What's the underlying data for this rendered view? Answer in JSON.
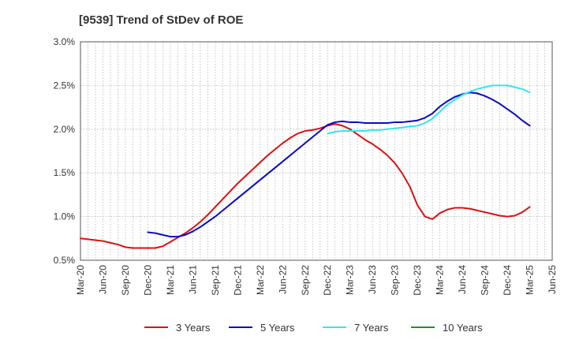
{
  "chart_data": {
    "type": "line",
    "title": "[9539]  Trend of StDev of ROE",
    "xlabel": "",
    "ylabel": "",
    "ylim": [
      0.5,
      3.0
    ],
    "y_ticks": [
      "0.5%",
      "1.0%",
      "1.5%",
      "2.0%",
      "2.5%",
      "3.0%"
    ],
    "y_tick_values": [
      0.5,
      1.0,
      1.5,
      2.0,
      2.5,
      3.0
    ],
    "x_ticks": [
      "Mar-20",
      "Jun-20",
      "Sep-20",
      "Dec-20",
      "Mar-21",
      "Jun-21",
      "Sep-21",
      "Dec-21",
      "Mar-22",
      "Jun-22",
      "Sep-22",
      "Dec-22",
      "Mar-23",
      "Jun-23",
      "Sep-23",
      "Dec-23",
      "Mar-24",
      "Jun-24",
      "Sep-24",
      "Dec-24",
      "Mar-25",
      "Jun-25"
    ],
    "grid": true,
    "legend_position": "bottom",
    "series": [
      {
        "name": "3 Years",
        "color": "#dd1111",
        "x": [
          "Mar-20",
          "Apr-20",
          "May-20",
          "Jun-20",
          "Jul-20",
          "Aug-20",
          "Sep-20",
          "Oct-20",
          "Nov-20",
          "Dec-20",
          "Jan-21",
          "Feb-21",
          "Mar-21",
          "Apr-21",
          "May-21",
          "Jun-21",
          "Jul-21",
          "Aug-21",
          "Sep-21",
          "Oct-21",
          "Nov-21",
          "Dec-21",
          "Jan-22",
          "Feb-22",
          "Mar-22",
          "Apr-22",
          "May-22",
          "Jun-22",
          "Jul-22",
          "Aug-22",
          "Sep-22",
          "Oct-22",
          "Nov-22",
          "Dec-22",
          "Jan-23",
          "Feb-23",
          "Mar-23",
          "Apr-23",
          "May-23",
          "Jun-23",
          "Jul-23",
          "Aug-23",
          "Sep-23",
          "Oct-23",
          "Nov-23",
          "Dec-23",
          "Jan-24",
          "Feb-24",
          "Mar-24",
          "Apr-24",
          "May-24",
          "Jun-24",
          "Jul-24",
          "Aug-24",
          "Sep-24",
          "Oct-24",
          "Nov-24",
          "Dec-24",
          "Jan-25",
          "Feb-25",
          "Mar-25"
        ],
        "values": [
          0.75,
          0.74,
          0.73,
          0.72,
          0.7,
          0.68,
          0.65,
          0.64,
          0.64,
          0.64,
          0.64,
          0.66,
          0.71,
          0.76,
          0.81,
          0.87,
          0.94,
          1.02,
          1.11,
          1.2,
          1.29,
          1.38,
          1.46,
          1.54,
          1.62,
          1.7,
          1.77,
          1.84,
          1.9,
          1.95,
          1.98,
          1.99,
          2.01,
          2.04,
          2.06,
          2.04,
          2.0,
          1.94,
          1.88,
          1.83,
          1.77,
          1.7,
          1.61,
          1.49,
          1.34,
          1.13,
          1.0,
          0.97,
          1.04,
          1.08,
          1.1,
          1.1,
          1.09,
          1.07,
          1.05,
          1.03,
          1.01,
          1.0,
          1.01,
          1.05,
          1.11
        ]
      },
      {
        "name": "5 Years",
        "color": "#0a0ac8",
        "x": [
          "Dec-20",
          "Jan-21",
          "Feb-21",
          "Mar-21",
          "Apr-21",
          "May-21",
          "Jun-21",
          "Jul-21",
          "Aug-21",
          "Sep-21",
          "Oct-21",
          "Nov-21",
          "Dec-21",
          "Jan-22",
          "Feb-22",
          "Mar-22",
          "Apr-22",
          "May-22",
          "Jun-22",
          "Jul-22",
          "Aug-22",
          "Sep-22",
          "Oct-22",
          "Nov-22",
          "Dec-22",
          "Jan-23",
          "Feb-23",
          "Mar-23",
          "Apr-23",
          "May-23",
          "Jun-23",
          "Jul-23",
          "Aug-23",
          "Sep-23",
          "Oct-23",
          "Nov-23",
          "Dec-23",
          "Jan-24",
          "Feb-24",
          "Mar-24",
          "Apr-24",
          "May-24",
          "Jun-24",
          "Jul-24",
          "Aug-24",
          "Sep-24",
          "Oct-24",
          "Nov-24",
          "Dec-24",
          "Jan-25",
          "Feb-25",
          "Mar-25"
        ],
        "values": [
          0.82,
          0.81,
          0.79,
          0.77,
          0.77,
          0.79,
          0.83,
          0.88,
          0.94,
          1.0,
          1.07,
          1.14,
          1.21,
          1.28,
          1.35,
          1.42,
          1.49,
          1.56,
          1.63,
          1.7,
          1.77,
          1.84,
          1.91,
          1.98,
          2.05,
          2.08,
          2.09,
          2.08,
          2.08,
          2.07,
          2.07,
          2.07,
          2.07,
          2.08,
          2.08,
          2.09,
          2.1,
          2.13,
          2.18,
          2.26,
          2.32,
          2.37,
          2.4,
          2.42,
          2.41,
          2.38,
          2.34,
          2.29,
          2.23,
          2.17,
          2.1,
          2.04
        ]
      },
      {
        "name": "7 Years",
        "color": "#33e6ee",
        "x": [
          "Dec-22",
          "Jan-23",
          "Feb-23",
          "Mar-23",
          "Apr-23",
          "May-23",
          "Jun-23",
          "Jul-23",
          "Aug-23",
          "Sep-23",
          "Oct-23",
          "Nov-23",
          "Dec-23",
          "Jan-24",
          "Feb-24",
          "Mar-24",
          "Apr-24",
          "May-24",
          "Jun-24",
          "Jul-24",
          "Aug-24",
          "Sep-24",
          "Oct-24",
          "Nov-24",
          "Dec-24",
          "Jan-25",
          "Feb-25",
          "Mar-25"
        ],
        "values": [
          1.95,
          1.97,
          1.98,
          1.98,
          1.98,
          1.98,
          1.99,
          1.99,
          2.0,
          2.01,
          2.02,
          2.03,
          2.04,
          2.07,
          2.12,
          2.2,
          2.28,
          2.34,
          2.39,
          2.43,
          2.46,
          2.48,
          2.5,
          2.5,
          2.5,
          2.48,
          2.46,
          2.42
        ]
      },
      {
        "name": "10 Years",
        "color": "#2a8c2a",
        "x": [],
        "values": []
      }
    ]
  }
}
